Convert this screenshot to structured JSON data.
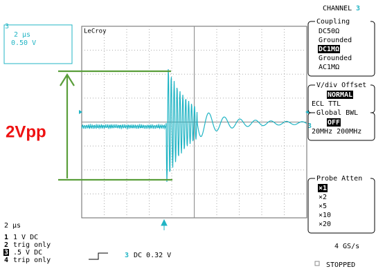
{
  "header": {
    "title": "CHANNEL",
    "channel": "3"
  },
  "trace_box": {
    "channel": "3",
    "time_div": "2 µs",
    "volt_div": "0.50 V"
  },
  "brand": "LeCroy",
  "menus": [
    {
      "title": "Coupling",
      "options": [
        "DC50Ω",
        "Grounded",
        "DC1MΩ",
        "Grounded",
        "AC1MΩ"
      ],
      "selected": 2
    },
    {
      "title": "V/div Offset",
      "options": [
        "NORMAL",
        "ECL  TTL"
      ],
      "selected": 0
    },
    {
      "title": "Global BWL",
      "options": [
        "OFF",
        "20MHz 200MHz"
      ],
      "selected": 0
    },
    {
      "title": "Probe Atten",
      "options": [
        "×1",
        "×2",
        "×5",
        "×10",
        "×20"
      ],
      "selected": 0
    }
  ],
  "annotation": "2Vpp",
  "ground_marker": "3",
  "status": {
    "timebase": "2 µs",
    "channels": [
      [
        "1",
        "1  V  DC"
      ],
      [
        "2",
        "trig only"
      ],
      [
        "3",
        ".5  V  DC"
      ],
      [
        "4",
        "trip only"
      ]
    ],
    "trigger_channel": "3",
    "trigger": "DC 0.32 V",
    "sample_rate": "4 GS/s",
    "state": "STOPPED"
  }
}
